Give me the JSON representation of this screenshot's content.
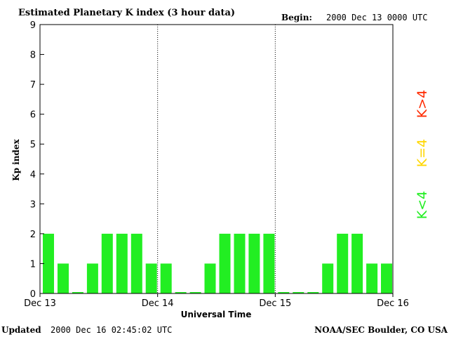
{
  "header": {
    "title": "Estimated Planetary K index (3 hour data)",
    "begin_label": "Begin:",
    "begin_value": "2000 Dec 13 0000 UTC"
  },
  "footer": {
    "updated_label": "Updated",
    "updated_value": "2000 Dec 16 02:45:02 UTC",
    "credit": "NOAA/SEC Boulder, CO USA"
  },
  "legend": [
    {
      "label": "K>4",
      "color": "#ff2a00"
    },
    {
      "label": "K=4",
      "color": "#ffd700"
    },
    {
      "label": "K<4",
      "color": "#22ee22"
    }
  ],
  "chart_data": {
    "type": "bar",
    "title": "Estimated Planetary K index (3 hour data)",
    "xlabel": "Universal Time",
    "ylabel": "Kp index",
    "ylim": [
      0,
      9
    ],
    "yticks": [
      "0",
      "1",
      "2",
      "3",
      "4",
      "5",
      "6",
      "7",
      "8",
      "9"
    ],
    "x_tick_labels": [
      "Dec 13",
      "Dec 14",
      "Dec 15",
      "Dec 16"
    ],
    "interval_hours": 3,
    "values": [
      2,
      1,
      0,
      1,
      2,
      2,
      2,
      1,
      1,
      0,
      0,
      1,
      2,
      2,
      2,
      2,
      0,
      0,
      0,
      1,
      2,
      2,
      1,
      1
    ],
    "bar_color": "#22ee22",
    "day_separators": "dotted"
  }
}
